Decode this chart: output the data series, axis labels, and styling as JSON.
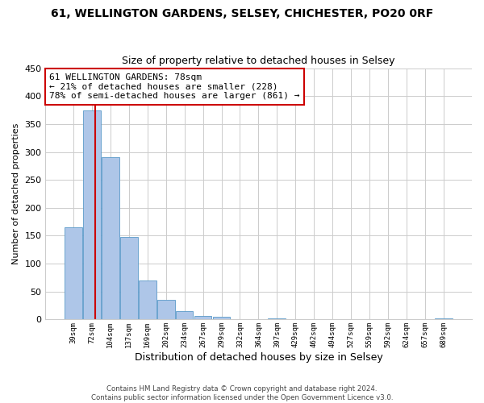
{
  "title": "61, WELLINGTON GARDENS, SELSEY, CHICHESTER, PO20 0RF",
  "subtitle": "Size of property relative to detached houses in Selsey",
  "xlabel": "Distribution of detached houses by size in Selsey",
  "ylabel": "Number of detached properties",
  "footer_line1": "Contains HM Land Registry data © Crown copyright and database right 2024.",
  "footer_line2": "Contains public sector information licensed under the Open Government Licence v3.0.",
  "bin_labels": [
    "39sqm",
    "72sqm",
    "104sqm",
    "137sqm",
    "169sqm",
    "202sqm",
    "234sqm",
    "267sqm",
    "299sqm",
    "332sqm",
    "364sqm",
    "397sqm",
    "429sqm",
    "462sqm",
    "494sqm",
    "527sqm",
    "559sqm",
    "592sqm",
    "624sqm",
    "657sqm",
    "689sqm"
  ],
  "bar_values": [
    165,
    375,
    290,
    148,
    70,
    35,
    15,
    7,
    5,
    0,
    0,
    2,
    0,
    0,
    0,
    0,
    0,
    0,
    0,
    0,
    2
  ],
  "bar_color": "#aec6e8",
  "bar_edge_color": "#5a9ac8",
  "annotation_title": "61 WELLINGTON GARDENS: 78sqm",
  "annotation_line1": "← 21% of detached houses are smaller (228)",
  "annotation_line2": "78% of semi-detached houses are larger (861) →",
  "annotation_box_color": "#ffffff",
  "annotation_box_edge": "#cc0000",
  "property_line_color": "#cc0000",
  "ylim": [
    0,
    450
  ],
  "yticks": [
    0,
    50,
    100,
    150,
    200,
    250,
    300,
    350,
    400,
    450
  ],
  "grid_color": "#cccccc",
  "background_color": "#ffffff"
}
